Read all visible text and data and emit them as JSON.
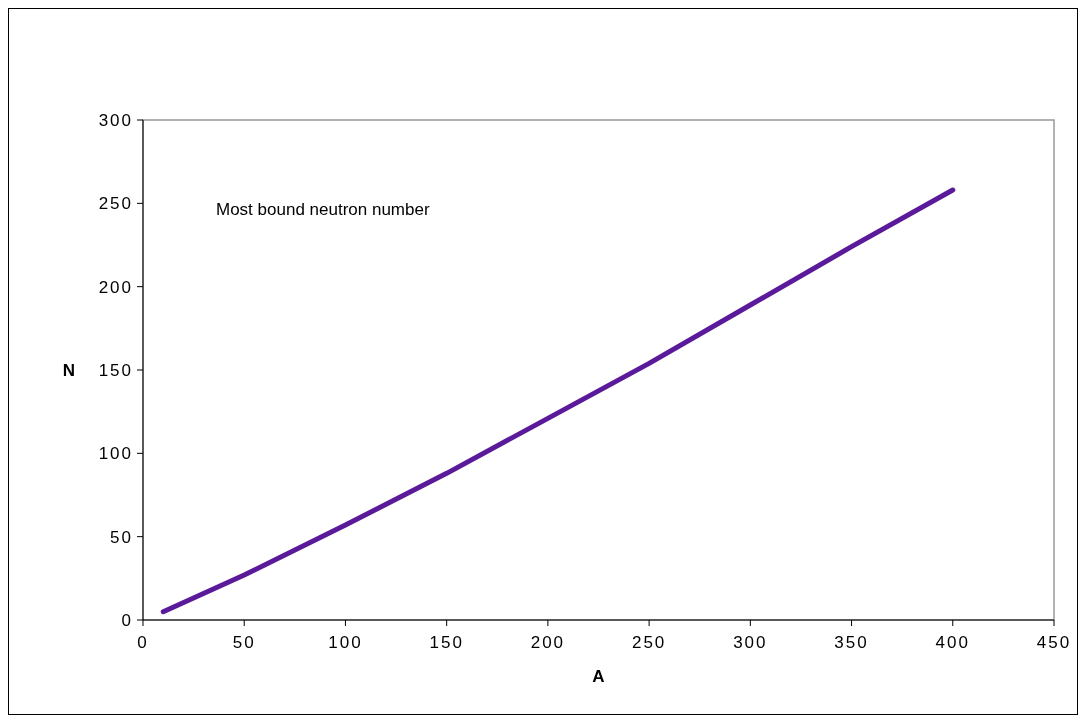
{
  "chart_data": {
    "type": "line",
    "xlabel": "A",
    "ylabel": "N",
    "x": [
      10,
      50,
      100,
      150,
      200,
      250,
      300,
      350,
      400
    ],
    "series": [
      {
        "color": "#5a1a9a",
        "values": [
          5,
          27,
          57,
          88,
          121,
          154,
          189,
          224,
          258
        ]
      }
    ],
    "xlim": [
      0,
      450
    ],
    "ylim": [
      0,
      300
    ],
    "xticks": [
      0,
      50,
      100,
      150,
      200,
      250,
      300,
      350,
      400,
      450
    ],
    "yticks": [
      0,
      50,
      100,
      150,
      200,
      250,
      300
    ],
    "annotations": [
      "Most bound neutron number"
    ],
    "grid": false,
    "marker": "none",
    "line_style": "solid"
  }
}
